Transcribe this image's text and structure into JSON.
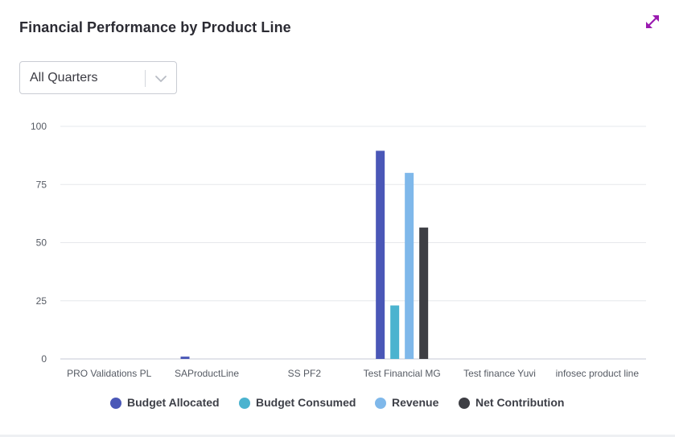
{
  "title": "Financial Performance by Product Line",
  "expand_icon": "expand-arrows-icon",
  "filter": {
    "selected": "All Quarters",
    "icon": "chevron-down-icon"
  },
  "colors": {
    "budget_allocated": "#4a57b7",
    "budget_consumed": "#4bb3cf",
    "revenue": "#7fb8ea",
    "net_contribution": "#3d3e44",
    "accent": "#9a1ab0"
  },
  "legend": [
    {
      "label": "Budget Allocated",
      "color": "#4a57b7"
    },
    {
      "label": "Budget Consumed",
      "color": "#4bb3cf"
    },
    {
      "label": "Revenue",
      "color": "#7fb8ea"
    },
    {
      "label": "Net Contribution",
      "color": "#3d3e44"
    }
  ],
  "chart_data": {
    "type": "bar",
    "title": "Financial Performance by Product Line",
    "xlabel": "",
    "ylabel": "",
    "ylim": [
      0,
      100
    ],
    "yticks": [
      0,
      25,
      50,
      75,
      100
    ],
    "grid": true,
    "legend_position": "bottom",
    "categories": [
      "PRO Validations PL",
      "SAProductLine",
      "SS PF2",
      "Test Financial MG",
      "Test finance Yuvi",
      "infosec product line"
    ],
    "series": [
      {
        "name": "Budget Allocated",
        "color": "#4a57b7",
        "values": [
          0,
          1,
          0,
          89.5,
          0,
          0
        ]
      },
      {
        "name": "Budget Consumed",
        "color": "#4bb3cf",
        "values": [
          0,
          0,
          0,
          23,
          0,
          0
        ]
      },
      {
        "name": "Revenue",
        "color": "#7fb8ea",
        "values": [
          0,
          0,
          0,
          80,
          0,
          0
        ]
      },
      {
        "name": "Net Contribution",
        "color": "#3d3e44",
        "values": [
          0,
          0,
          0,
          56.5,
          0,
          0
        ]
      }
    ]
  }
}
